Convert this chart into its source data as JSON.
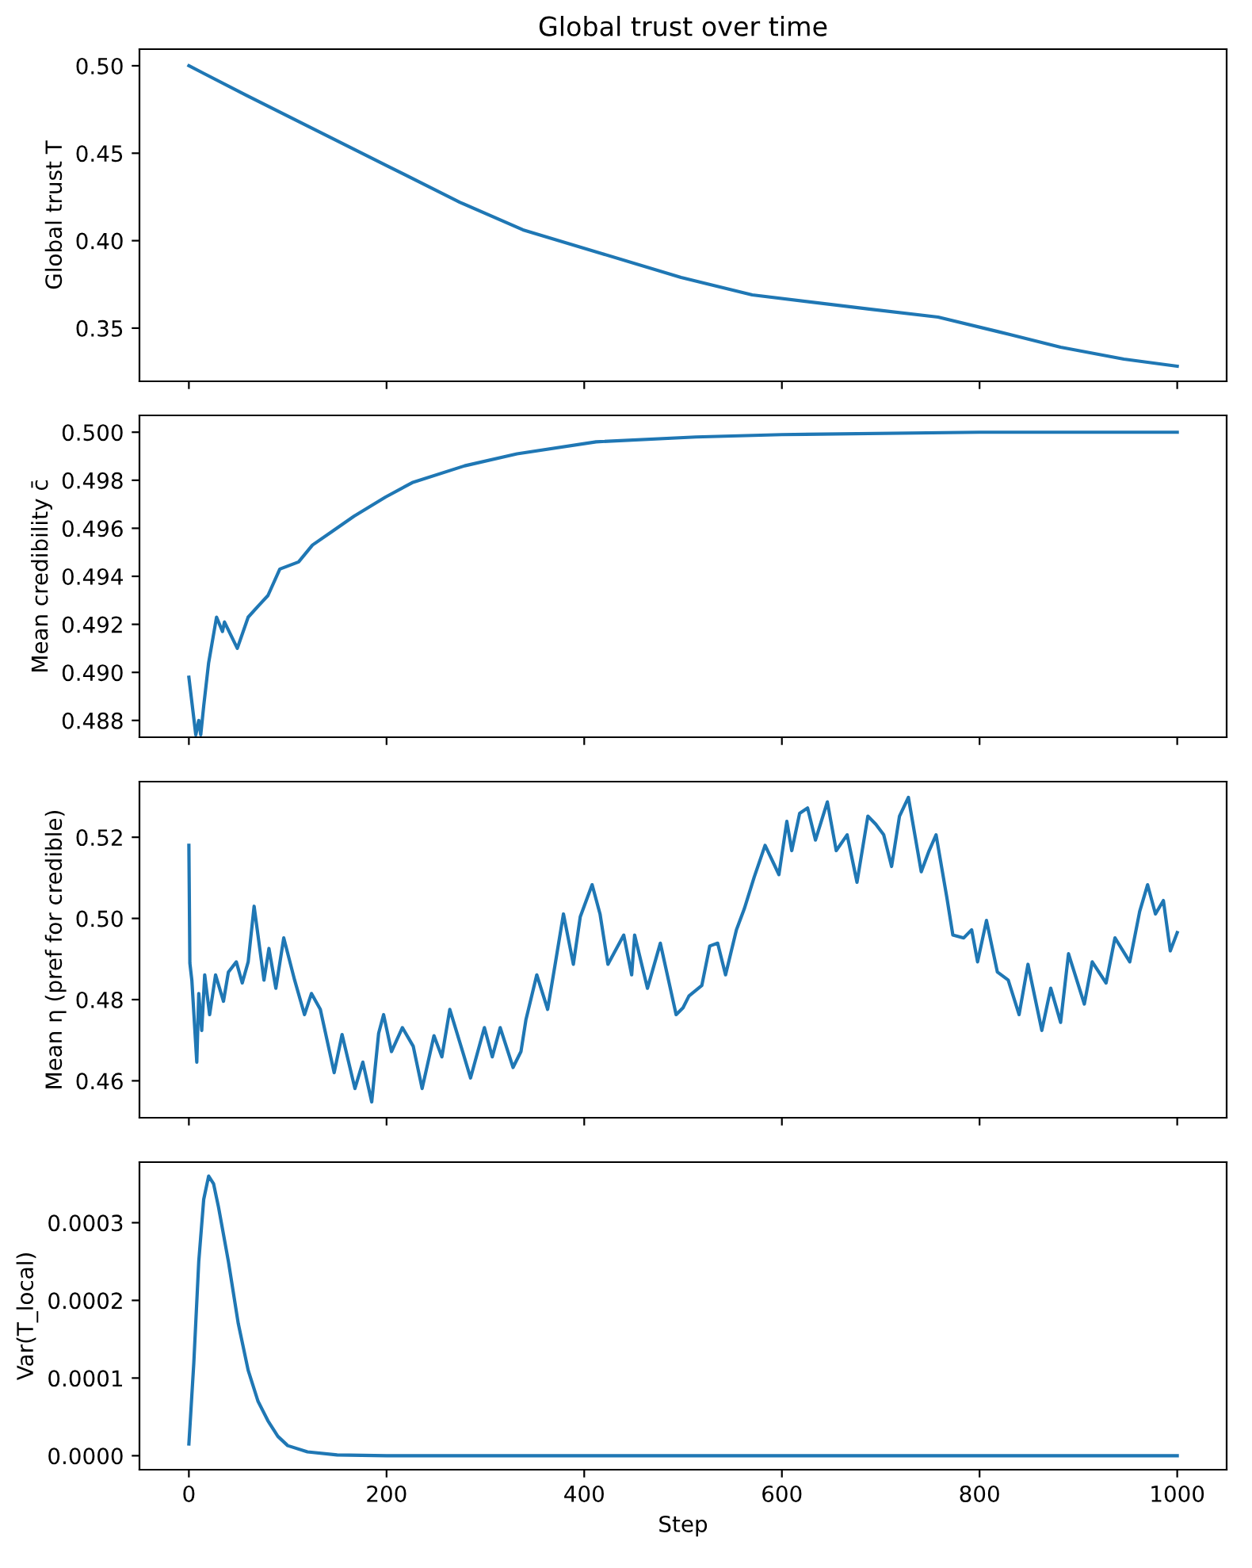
{
  "chart_data": [
    {
      "type": "line",
      "title": "Global trust over time",
      "ylabel": "Global trust T",
      "tick_labels": "y",
      "xlim": [
        -50,
        1050
      ],
      "xticks": [
        {
          "value": 0,
          "label": null
        },
        {
          "value": 200,
          "label": null
        },
        {
          "value": 400,
          "label": null
        },
        {
          "value": 600,
          "label": null
        },
        {
          "value": 800,
          "label": null
        },
        {
          "value": 1000,
          "label": null
        }
      ],
      "ylim": [
        0.3196,
        0.5095
      ],
      "yticks": [
        {
          "value": 0.35,
          "label": "0.35"
        },
        {
          "value": 0.4,
          "label": "0.40"
        },
        {
          "value": 0.45,
          "label": "0.45"
        },
        {
          "value": 0.5,
          "label": "0.50"
        }
      ],
      "series": [
        {
          "color": "#1f77b4",
          "x": [
            0,
            58,
            130,
            202,
            274,
            338,
            418,
            498,
            570,
            690,
            758,
            818,
            882,
            946,
            1000
          ],
          "values": [
            0.5,
            0.4832,
            0.4628,
            0.4424,
            0.422,
            0.4062,
            0.3926,
            0.379,
            0.369,
            0.3608,
            0.3563,
            0.3481,
            0.3391,
            0.3323,
            0.3282
          ]
        }
      ]
    },
    {
      "type": "line",
      "ylabel": "Mean credibility c̄",
      "tick_labels": "y",
      "xlim": [
        -50,
        1050
      ],
      "xticks": [
        {
          "value": 0,
          "label": null
        },
        {
          "value": 200,
          "label": null
        },
        {
          "value": 400,
          "label": null
        },
        {
          "value": 600,
          "label": null
        },
        {
          "value": 800,
          "label": null
        },
        {
          "value": 1000,
          "label": null
        }
      ],
      "ylim": [
        0.4873,
        0.5007
      ],
      "yticks": [
        {
          "value": 0.488,
          "label": "0.488"
        },
        {
          "value": 0.49,
          "label": "0.490"
        },
        {
          "value": 0.492,
          "label": "0.492"
        },
        {
          "value": 0.494,
          "label": "0.494"
        },
        {
          "value": 0.496,
          "label": "0.496"
        },
        {
          "value": 0.498,
          "label": "0.498"
        },
        {
          "value": 0.5,
          "label": "0.500"
        }
      ],
      "series": [
        {
          "color": "#1f77b4",
          "x": [
            0,
            7,
            10,
            12,
            15,
            20,
            28,
            34,
            36,
            49,
            60,
            71,
            80,
            92,
            111,
            125,
            146,
            167,
            199,
            226,
            279,
            332,
            412,
            513,
            600,
            800,
            1000
          ],
          "values": [
            0.4898,
            0.4874,
            0.488,
            0.4874,
            0.4886,
            0.4904,
            0.4923,
            0.4917,
            0.4921,
            0.491,
            0.4923,
            0.4928,
            0.4932,
            0.4943,
            0.4946,
            0.4953,
            0.4959,
            0.4965,
            0.4973,
            0.4979,
            0.4986,
            0.4991,
            0.4996,
            0.4998,
            0.4999,
            0.5,
            0.5
          ]
        }
      ]
    },
    {
      "type": "line",
      "ylabel": "Mean η (pref for credible)",
      "tick_labels": "y",
      "xlim": [
        -50,
        1050
      ],
      "xticks": [
        {
          "value": 0,
          "label": null
        },
        {
          "value": 200,
          "label": null
        },
        {
          "value": 400,
          "label": null
        },
        {
          "value": 600,
          "label": null
        },
        {
          "value": 800,
          "label": null
        },
        {
          "value": 1000,
          "label": null
        }
      ],
      "ylim": [
        0.4509,
        0.5337
      ],
      "yticks": [
        {
          "value": 0.46,
          "label": "0.46"
        },
        {
          "value": 0.48,
          "label": "0.48"
        },
        {
          "value": 0.5,
          "label": "0.50"
        },
        {
          "value": 0.52,
          "label": "0.52"
        }
      ],
      "series": [
        {
          "color": "#1f77b4",
          "x": [
            0,
            1,
            3,
            8,
            10,
            13,
            16,
            21,
            27,
            35,
            40,
            48,
            54,
            60,
            66,
            76,
            81,
            88,
            96,
            107,
            117,
            124,
            133,
            147,
            155,
            168,
            176,
            185,
            192,
            197,
            205,
            216,
            227,
            236,
            248,
            256,
            264,
            277,
            285,
            299,
            307,
            315,
            328,
            336,
            341,
            352,
            363,
            371,
            379,
            389,
            396,
            408,
            416,
            424,
            440,
            448,
            451,
            464,
            477,
            493,
            500,
            506,
            519,
            527,
            535,
            543,
            554,
            562,
            572,
            583,
            597,
            605,
            610,
            618,
            626,
            634,
            646,
            655,
            666,
            676,
            687,
            695,
            703,
            711,
            719,
            728,
            741,
            749,
            756,
            767,
            773,
            784,
            792,
            798,
            807,
            818,
            829,
            840,
            849,
            863,
            872,
            882,
            890,
            906,
            914,
            928,
            937,
            952,
            962,
            970,
            978,
            986,
            993,
            1000
          ],
          "values": [
            0.518,
            0.489,
            0.4848,
            0.4646,
            0.4815,
            0.4724,
            0.4861,
            0.4763,
            0.4861,
            0.4796,
            0.4868,
            0.4893,
            0.4841,
            0.4893,
            0.503,
            0.4848,
            0.4926,
            0.4828,
            0.4952,
            0.4848,
            0.4763,
            0.4815,
            0.4776,
            0.462,
            0.4714,
            0.4581,
            0.4646,
            0.4548,
            0.4717,
            0.4763,
            0.4672,
            0.4731,
            0.4685,
            0.4581,
            0.4711,
            0.4659,
            0.4776,
            0.4672,
            0.4607,
            0.4731,
            0.4659,
            0.4731,
            0.4633,
            0.4672,
            0.475,
            0.4861,
            0.4776,
            0.4893,
            0.5011,
            0.4887,
            0.5004,
            0.5083,
            0.5011,
            0.4887,
            0.4959,
            0.4861,
            0.4959,
            0.4828,
            0.4939,
            0.4763,
            0.478,
            0.4809,
            0.4835,
            0.4932,
            0.4939,
            0.4861,
            0.4972,
            0.5024,
            0.5102,
            0.518,
            0.5108,
            0.5239,
            0.5167,
            0.5259,
            0.5272,
            0.5193,
            0.5287,
            0.5167,
            0.5206,
            0.5089,
            0.5252,
            0.5232,
            0.5206,
            0.5128,
            0.5252,
            0.5298,
            0.5115,
            0.5167,
            0.5206,
            0.505,
            0.4959,
            0.4952,
            0.4972,
            0.4893,
            0.4995,
            0.4868,
            0.4848,
            0.4763,
            0.4887,
            0.4724,
            0.4828,
            0.4744,
            0.4913,
            0.4789,
            0.4893,
            0.4841,
            0.4952,
            0.4893,
            0.5017,
            0.5083,
            0.5011,
            0.5044,
            0.492,
            0.4965
          ]
        }
      ]
    },
    {
      "type": "line",
      "ylabel": "Var(T_local)",
      "xlabel": "Step",
      "xlim": [
        -50,
        1050
      ],
      "xticks": [
        0,
        200,
        400,
        600,
        800,
        1000
      ],
      "ylim": [
        -1.8e-05,
        0.000378
      ],
      "yticks": [
        {
          "value": 0,
          "label": "0.0000"
        },
        {
          "value": 0.0001,
          "label": "0.0001"
        },
        {
          "value": 0.0002,
          "label": "0.0002"
        },
        {
          "value": 0.0003,
          "label": "0.0003"
        }
      ],
      "series": [
        {
          "color": "#1f77b4",
          "x": [
            0,
            5,
            10,
            15,
            20,
            25,
            30,
            40,
            50,
            60,
            70,
            80,
            90,
            100,
            120,
            150,
            200,
            1000
          ],
          "values": [
            1.5e-05,
            0.00012,
            0.00025,
            0.00033,
            0.00036,
            0.00035,
            0.00032,
            0.00025,
            0.00017,
            0.00011,
            7e-05,
            4.5e-05,
            2.5e-05,
            1.3e-05,
            5e-06,
            1e-06,
            0,
            0
          ]
        }
      ]
    }
  ]
}
